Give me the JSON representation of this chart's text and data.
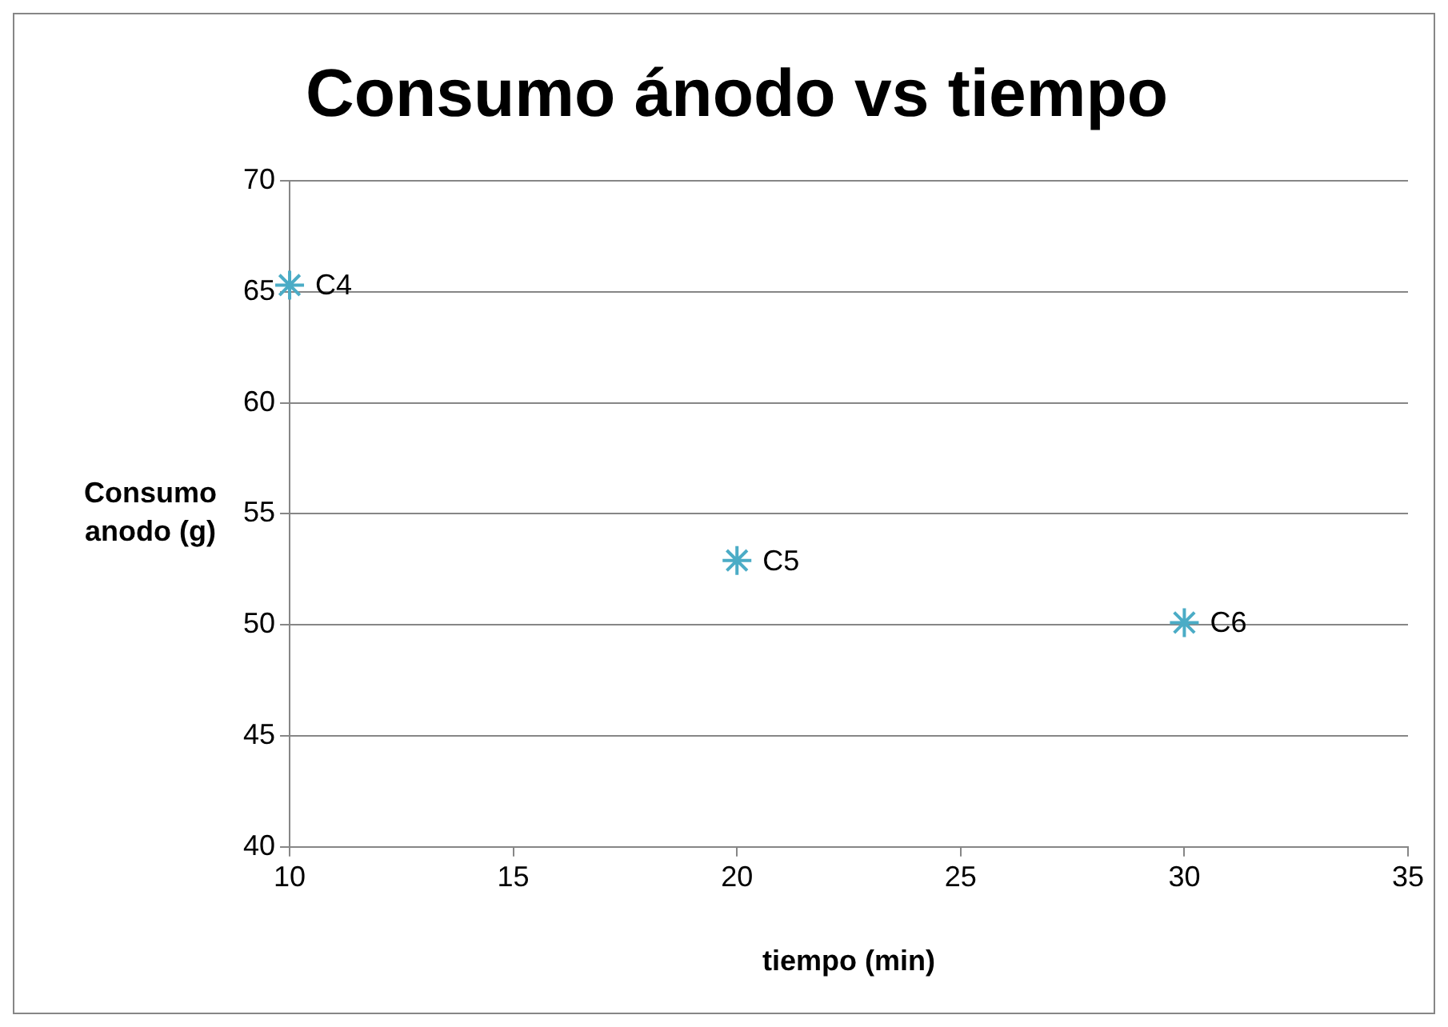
{
  "chart_data": {
    "type": "scatter",
    "title": "Consumo ánodo vs tiempo",
    "xlabel": "tiempo (min)",
    "ylabel": "Consumo anodo (g)",
    "x": [
      10,
      20,
      30
    ],
    "series": [
      {
        "color": "#4bacc6",
        "values": [
          65.3,
          52.9,
          50.1
        ]
      }
    ],
    "xlim": [
      10,
      35
    ],
    "xticks": [
      10,
      15,
      20,
      25,
      30,
      35
    ],
    "ylim": [
      40,
      70
    ],
    "yticks": [
      40,
      45,
      50,
      55,
      60,
      65,
      70
    ],
    "grid": "y",
    "legend": false,
    "marker": "cross",
    "annotations": [
      {
        "text": "C4",
        "x": 10,
        "y": 65.3
      },
      {
        "text": "C5",
        "x": 20,
        "y": 52.9
      },
      {
        "text": "C6",
        "x": 30,
        "y": 50.1
      }
    ]
  }
}
